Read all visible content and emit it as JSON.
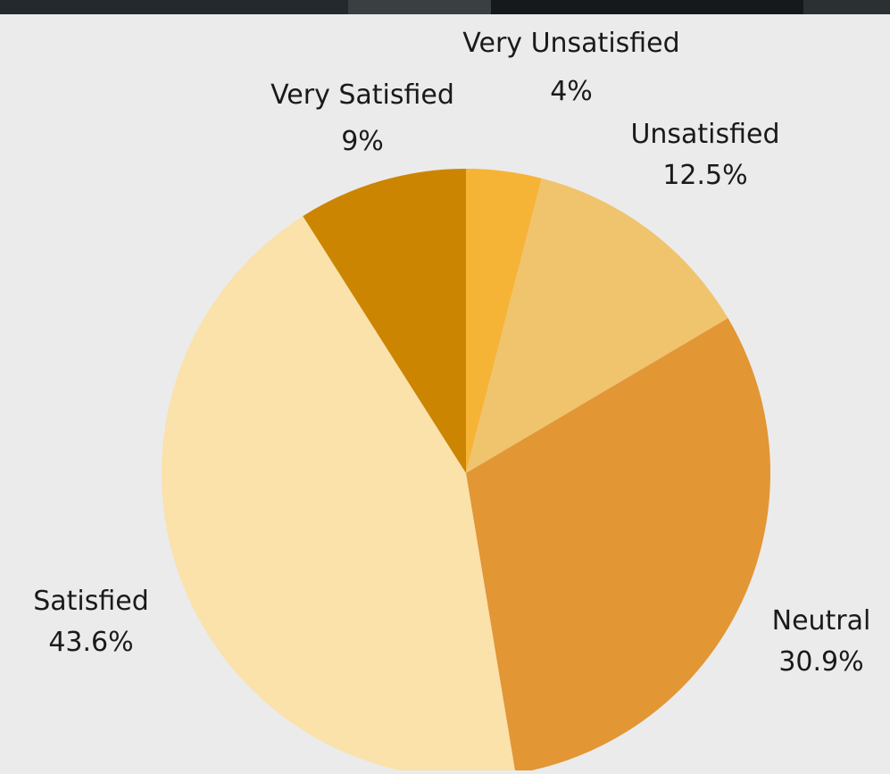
{
  "chart_data": {
    "type": "pie",
    "title": "",
    "start_angle_deg": 0,
    "direction": "clockwise",
    "slices": [
      {
        "label": "Very Unsatisfied",
        "value": 4,
        "value_label": "4%",
        "color": "#f6b437"
      },
      {
        "label": "Unsatisfied",
        "value": 12.5,
        "value_label": "12.5%",
        "color": "#f0c36d"
      },
      {
        "label": "Neutral",
        "value": 30.9,
        "value_label": "30.9%",
        "color": "#e29634"
      },
      {
        "label": "Satisfied",
        "value": 43.6,
        "value_label": "43.6%",
        "color": "#fbe1aa"
      },
      {
        "label": "Very Satisfied",
        "value": 9,
        "value_label": "9%",
        "color": "#cc8500"
      }
    ],
    "legend": "none"
  },
  "colors": {
    "background": "#ebebeb",
    "top_strip": "#1f2326"
  }
}
